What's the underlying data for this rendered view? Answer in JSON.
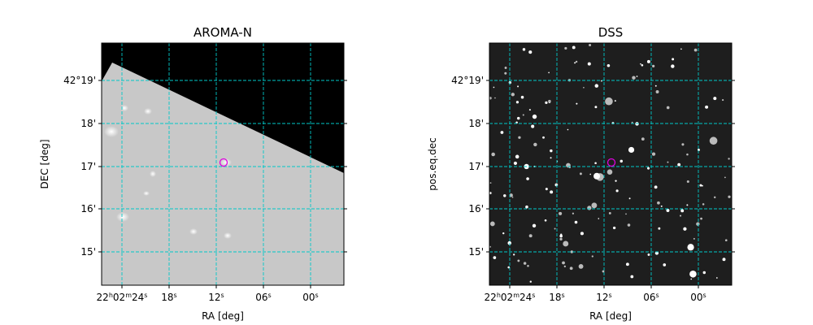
{
  "panels": [
    {
      "title": "AROMA-N",
      "xlabel": "RA [deg]",
      "ylabel": "DEC [deg]",
      "xticks": [
        [
          "22",
          "h",
          "02",
          "m",
          "24",
          "s"
        ],
        [
          "18",
          "s"
        ],
        [
          "12",
          "s"
        ],
        [
          "06",
          "s"
        ],
        [
          "00",
          "s"
        ]
      ],
      "yticks": [
        "42°19'",
        "18'",
        "17'",
        "16'",
        "15'"
      ]
    },
    {
      "title": "DSS",
      "xlabel": "RA [deg]",
      "ylabel": "pos.eq.dec",
      "xticks": [
        [
          "22",
          "h",
          "02",
          "m",
          "24",
          "s"
        ],
        [
          "18",
          "s"
        ],
        [
          "12",
          "s"
        ],
        [
          "06",
          "s"
        ],
        [
          "00",
          "s"
        ]
      ],
      "yticks": [
        "42°19'",
        "18'",
        "17'",
        "16'",
        "15'"
      ]
    }
  ]
}
